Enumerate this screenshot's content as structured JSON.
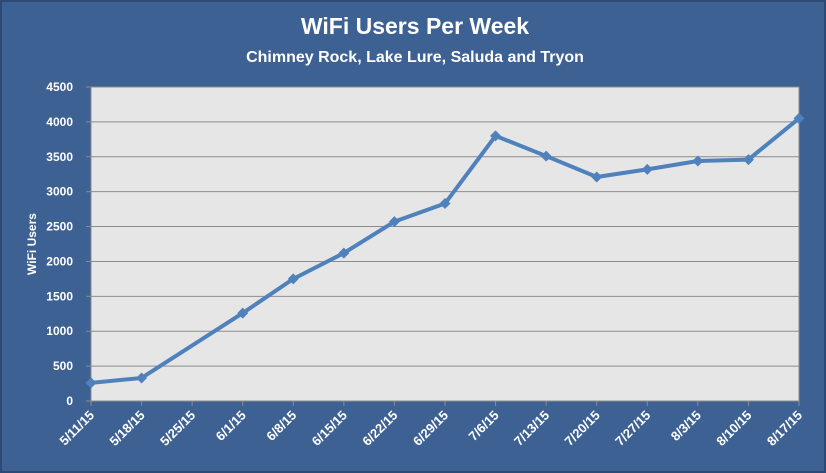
{
  "chart_data": {
    "type": "line",
    "title": "WiFi Users Per Week",
    "subtitle": "Chimney Rock, Lake Lure, Saluda and Tryon",
    "xlabel": "",
    "ylabel": "WiFi Users",
    "ylim": [
      0,
      4500
    ],
    "ytick_step": 500,
    "grid": true,
    "legend": "none",
    "categories": [
      "5/11/15",
      "5/18/15",
      "5/25/15",
      "6/1/15",
      "6/8/15",
      "6/15/15",
      "6/22/15",
      "6/29/15",
      "7/6/15",
      "7/13/15",
      "7/20/15",
      "7/27/15",
      "8/3/15",
      "8/10/15",
      "8/17/15"
    ],
    "series": [
      {
        "values": [
          260,
          330,
          null,
          1260,
          1750,
          2120,
          2570,
          2830,
          3800,
          3510,
          3210,
          3320,
          3440,
          3460,
          4050
        ],
        "color": "#4f81bd",
        "marker": "diamond"
      }
    ],
    "colors": {
      "frame": "#3d6193",
      "plot_background": "#e6e6e6",
      "gridline": "#8c8c8c",
      "text": "#ffffff"
    }
  }
}
